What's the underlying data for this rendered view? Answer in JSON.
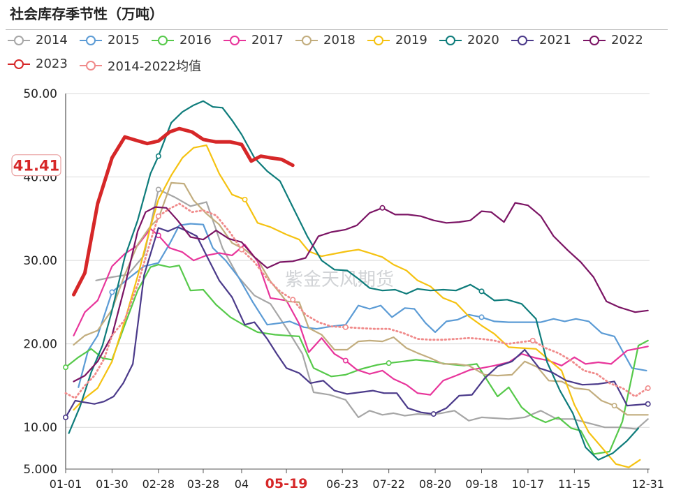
{
  "title": "社会库存季节性（万吨）",
  "watermark": "紫金天风期货",
  "chart_data": {
    "type": "line",
    "title": "社会库存季节性（万吨）",
    "xlabel": "",
    "ylabel": "",
    "x_domain": [
      0,
      365
    ],
    "ylim": [
      5,
      50
    ],
    "y_ticks": [
      {
        "value": 5,
        "label": "5.000"
      },
      {
        "value": 10,
        "label": "10.00"
      },
      {
        "value": 20,
        "label": "20.00"
      },
      {
        "value": 30,
        "label": "30.00"
      },
      {
        "value": 40,
        "label": "40.00"
      },
      {
        "value": 50,
        "label": "50.00"
      }
    ],
    "x_ticks": [
      {
        "day": 0,
        "label": "01-01"
      },
      {
        "day": 29,
        "label": "01-30"
      },
      {
        "day": 58,
        "label": "02-28"
      },
      {
        "day": 86,
        "label": "03-28"
      },
      {
        "day": 110,
        "label": "04"
      },
      {
        "day": 138,
        "label": "05-19",
        "highlight": true
      },
      {
        "day": 173,
        "label": "06-23"
      },
      {
        "day": 202,
        "label": "07-22"
      },
      {
        "day": 231,
        "label": "08-20"
      },
      {
        "day": 260,
        "label": "09-18"
      },
      {
        "day": 289,
        "label": "10-17"
      },
      {
        "day": 318,
        "label": "11-15"
      },
      {
        "day": 364,
        "label": "12-31"
      }
    ],
    "current_value_label": "41.41",
    "current_value": 41.41,
    "series": [
      {
        "name": "2014",
        "color": "#a6a6a6",
        "style": "solid",
        "width": 2.2,
        "x": [
          19,
          29,
          39,
          49,
          58,
          68,
          78,
          88,
          98,
          108,
          118,
          128,
          138,
          148,
          155,
          165,
          175,
          183,
          190,
          198,
          205,
          212,
          220,
          228,
          235,
          243,
          252,
          260,
          269,
          277,
          287,
          297,
          307,
          317,
          327,
          337,
          347,
          357,
          364
        ],
        "y": [
          27.6,
          28.0,
          28.3,
          30.6,
          38.5,
          37.6,
          36.5,
          37.0,
          31.5,
          28.0,
          25.8,
          24.8,
          21.9,
          18.8,
          14.2,
          13.9,
          13.3,
          11.2,
          12.0,
          11.5,
          11.7,
          11.4,
          11.6,
          11.5,
          11.7,
          12.0,
          10.8,
          11.2,
          11.1,
          11.0,
          11.2,
          12.0,
          11.0,
          11.0,
          10.5,
          10.0,
          10.0,
          9.8,
          11.0
        ],
        "markers": [
          58
        ]
      },
      {
        "name": "2015",
        "color": "#5b9bd5",
        "style": "solid",
        "width": 2.2,
        "x": [
          8,
          14,
          20,
          29,
          39,
          49,
          58,
          65,
          71,
          78,
          86,
          92,
          100,
          108,
          117,
          126,
          134,
          140,
          149,
          157,
          166,
          175,
          183,
          190,
          197,
          204,
          212,
          218,
          225,
          231,
          238,
          245,
          252,
          260,
          268,
          277,
          287,
          297,
          305,
          312,
          319,
          327,
          335,
          343,
          354,
          363
        ],
        "y": [
          14.8,
          19.2,
          21.0,
          26.2,
          27.8,
          29.3,
          29.7,
          32.0,
          34.2,
          34.4,
          34.3,
          31.5,
          30.0,
          28.0,
          25.0,
          22.3,
          22.5,
          22.7,
          22.0,
          21.8,
          22.1,
          22.3,
          24.6,
          24.2,
          24.6,
          23.2,
          24.3,
          24.2,
          22.5,
          21.4,
          22.7,
          22.9,
          23.5,
          23.2,
          22.7,
          22.6,
          22.6,
          22.6,
          23.0,
          22.7,
          23.0,
          22.7,
          21.3,
          20.9,
          17.1,
          16.8
        ],
        "markers": [
          29,
          260
        ]
      },
      {
        "name": "2016",
        "color": "#56c94a",
        "style": "solid",
        "width": 2.2,
        "x": [
          0,
          8,
          16,
          23,
          29,
          37,
          45,
          53,
          58,
          65,
          71,
          78,
          86,
          94,
          103,
          112,
          120,
          131,
          138,
          146,
          155,
          166,
          175,
          185,
          195,
          202,
          211,
          219,
          229,
          238,
          249,
          257,
          264,
          270,
          277,
          285,
          292,
          300,
          308,
          316,
          322,
          330,
          340,
          348,
          358,
          364
        ],
        "y": [
          17.2,
          18.4,
          19.4,
          18.3,
          18.1,
          22.3,
          26.4,
          29.2,
          29.5,
          29.2,
          29.4,
          26.4,
          26.5,
          24.7,
          23.2,
          22.2,
          21.4,
          21.1,
          21.0,
          20.9,
          17.1,
          16.1,
          16.3,
          17.0,
          17.5,
          17.7,
          17.9,
          18.1,
          17.9,
          17.6,
          17.4,
          17.6,
          15.5,
          13.7,
          14.8,
          12.4,
          11.3,
          10.6,
          11.2,
          9.9,
          9.6,
          6.8,
          7.1,
          10.7,
          19.8,
          20.4
        ],
        "markers": [
          0,
          202
        ]
      },
      {
        "name": "2017",
        "color": "#e8359b",
        "style": "solid",
        "width": 2.2,
        "x": [
          5,
          12,
          20,
          29,
          37,
          45,
          53,
          58,
          65,
          73,
          80,
          88,
          96,
          104,
          112,
          120,
          128,
          138,
          146,
          152,
          160,
          168,
          175,
          182,
          190,
          198,
          205,
          213,
          220,
          228,
          236,
          244,
          253,
          260,
          268,
          277,
          285,
          294,
          302,
          310,
          318,
          325,
          333,
          341,
          351,
          364
        ],
        "y": [
          21.0,
          23.8,
          25.2,
          29.3,
          30.8,
          31.8,
          33.8,
          33.0,
          31.5,
          31.0,
          30.0,
          30.6,
          30.9,
          30.6,
          31.9,
          29.9,
          25.5,
          25.2,
          22.4,
          19.0,
          20.7,
          18.8,
          18.0,
          16.9,
          16.4,
          16.8,
          15.8,
          15.1,
          14.1,
          13.9,
          15.6,
          16.2,
          16.9,
          17.1,
          17.4,
          17.8,
          18.8,
          18.3,
          18.0,
          17.4,
          18.4,
          17.6,
          17.8,
          17.6,
          19.2,
          19.7
        ],
        "markers": [
          58,
          175
        ]
      },
      {
        "name": "2018",
        "color": "#c2ad7e",
        "style": "solid",
        "width": 2.2,
        "x": [
          5,
          12,
          20,
          29,
          37,
          45,
          53,
          58,
          66,
          74,
          80,
          88,
          96,
          104,
          112,
          120,
          128,
          138,
          146,
          152,
          160,
          168,
          176,
          183,
          190,
          198,
          205,
          213,
          220,
          228,
          236,
          244,
          252,
          262,
          270,
          279,
          287,
          295,
          302,
          310,
          318,
          327,
          335,
          343,
          351,
          364
        ],
        "y": [
          19.9,
          21.0,
          21.6,
          24.1,
          28.3,
          31.9,
          34.1,
          35.0,
          39.3,
          39.2,
          37.2,
          35.6,
          34.3,
          32.1,
          31.3,
          30.1,
          27.5,
          25.1,
          25.0,
          21.9,
          21.1,
          19.3,
          19.3,
          20.3,
          20.4,
          20.3,
          20.8,
          19.5,
          18.9,
          18.3,
          17.6,
          17.6,
          17.4,
          16.3,
          16.2,
          16.3,
          17.9,
          17.2,
          15.6,
          15.5,
          14.7,
          14.5,
          13.2,
          12.6,
          11.5,
          11.5
        ],
        "markers": [
          343
        ]
      },
      {
        "name": "2019",
        "color": "#f5c211",
        "style": "solid",
        "width": 2.2,
        "x": [
          5,
          12,
          20,
          29,
          37,
          45,
          53,
          58,
          66,
          73,
          80,
          88,
          96,
          104,
          112,
          120,
          128,
          138,
          146,
          152,
          160,
          168,
          176,
          183,
          190,
          198,
          205,
          213,
          220,
          228,
          236,
          244,
          252,
          260,
          268,
          277,
          285,
          294,
          302,
          310,
          318,
          327,
          336,
          344,
          352,
          359
        ],
        "y": [
          12.1,
          13.5,
          14.7,
          17.9,
          22.8,
          28.1,
          34.0,
          37.3,
          40.2,
          42.3,
          43.5,
          43.8,
          40.4,
          37.9,
          37.3,
          34.5,
          34.0,
          33.1,
          32.5,
          31.1,
          30.5,
          30.8,
          31.1,
          31.3,
          30.9,
          30.4,
          29.5,
          28.8,
          27.6,
          26.9,
          25.5,
          24.9,
          23.3,
          22.2,
          21.2,
          19.6,
          19.5,
          19.4,
          18.1,
          16.8,
          12.7,
          9.4,
          7.4,
          5.6,
          5.2,
          6.1
        ],
        "markers": [
          114
        ]
      },
      {
        "name": "2020",
        "color": "#0e7c7b",
        "style": "solid",
        "width": 2.2,
        "x": [
          2,
          9,
          16,
          23,
          29,
          37,
          45,
          53,
          58,
          66,
          73,
          80,
          86,
          92,
          98,
          104,
          110,
          118,
          126,
          134,
          142,
          151,
          160,
          168,
          176,
          183,
          190,
          198,
          206,
          213,
          220,
          228,
          236,
          244,
          253,
          260,
          268,
          276,
          285,
          294,
          301,
          309,
          317,
          325,
          333,
          342,
          351,
          358
        ],
        "y": [
          9.3,
          12.5,
          16.6,
          19.8,
          24.0,
          30.4,
          34.8,
          40.4,
          42.5,
          46.5,
          47.8,
          48.6,
          49.1,
          48.4,
          48.3,
          46.8,
          45.1,
          42.3,
          40.7,
          39.5,
          36.4,
          32.9,
          30.0,
          28.9,
          28.8,
          27.8,
          26.7,
          26.4,
          26.5,
          26.0,
          26.6,
          26.4,
          26.5,
          26.4,
          27.1,
          26.3,
          25.2,
          25.3,
          24.8,
          23.0,
          17.8,
          14.4,
          11.7,
          7.6,
          6.1,
          6.9,
          8.4,
          9.9
        ],
        "markers": [
          58,
          260
        ]
      },
      {
        "name": "2021",
        "color": "#4b3a8a",
        "style": "solid",
        "width": 2.2,
        "x": [
          0,
          6,
          12,
          18,
          24,
          30,
          36,
          42,
          49,
          58,
          64,
          70,
          76,
          82,
          88,
          96,
          104,
          112,
          118,
          126,
          132,
          138,
          146,
          153,
          161,
          168,
          176,
          184,
          192,
          199,
          207,
          214,
          222,
          230,
          238,
          246,
          254,
          262,
          270,
          279,
          287,
          296,
          304,
          313,
          323,
          333,
          343,
          351,
          364
        ],
        "y": [
          11.2,
          13.2,
          13.0,
          12.8,
          13.1,
          13.7,
          15.3,
          17.6,
          28.2,
          33.9,
          33.5,
          34.0,
          33.5,
          32.9,
          30.6,
          27.6,
          25.6,
          22.3,
          22.6,
          20.6,
          18.8,
          17.1,
          16.5,
          15.3,
          15.6,
          14.4,
          14.0,
          14.2,
          14.4,
          14.1,
          14.1,
          12.3,
          11.8,
          11.6,
          12.3,
          13.8,
          13.9,
          15.9,
          17.3,
          17.9,
          19.3,
          17.1,
          16.6,
          15.6,
          15.1,
          15.2,
          15.5,
          12.6,
          12.8
        ],
        "markers": [
          0,
          230,
          364
        ]
      },
      {
        "name": "2022",
        "color": "#7b1464",
        "style": "solid",
        "width": 2.2,
        "x": [
          5,
          12,
          20,
          29,
          37,
          45,
          50,
          56,
          63,
          70,
          78,
          86,
          94,
          102,
          110,
          118,
          126,
          134,
          142,
          150,
          158,
          166,
          175,
          182,
          190,
          198,
          206,
          214,
          222,
          230,
          238,
          246,
          253,
          260,
          266,
          274,
          281,
          289,
          297,
          305,
          314,
          322,
          330,
          338,
          346,
          356,
          364
        ],
        "y": [
          15.5,
          16.2,
          17.9,
          21.0,
          26.9,
          33.5,
          35.8,
          36.4,
          36.3,
          34.8,
          32.8,
          32.5,
          33.6,
          32.6,
          32.2,
          30.4,
          29.1,
          29.8,
          29.9,
          30.3,
          32.9,
          33.4,
          33.7,
          34.2,
          35.7,
          36.3,
          35.5,
          35.5,
          35.3,
          34.8,
          34.5,
          34.6,
          34.8,
          35.9,
          35.8,
          34.6,
          36.9,
          36.6,
          35.3,
          32.9,
          31.2,
          29.8,
          28.0,
          25.1,
          24.4,
          23.8,
          24.0
        ],
        "markers": [
          202
        ]
      },
      {
        "name": "2023",
        "color": "#d62728",
        "style": "solid",
        "width": 5.0,
        "x": [
          5,
          12,
          20,
          29,
          37,
          44,
          51,
          58,
          65,
          71,
          79,
          86,
          94,
          103,
          110,
          116,
          122,
          128,
          135,
          142
        ],
        "y": [
          25.9,
          28.5,
          36.8,
          42.3,
          44.8,
          44.4,
          44.0,
          44.3,
          45.4,
          45.8,
          45.4,
          44.5,
          44.2,
          44.2,
          43.9,
          41.9,
          42.5,
          42.3,
          42.1,
          41.4
        ],
        "markers": []
      },
      {
        "name": "2014-2022均值",
        "color": "#f08a8a",
        "style": "dotted",
        "width": 2.8,
        "x": [
          0,
          6,
          12,
          18,
          24,
          29,
          37,
          45,
          53,
          58,
          65,
          71,
          79,
          86,
          94,
          103,
          110,
          118,
          126,
          134,
          142,
          150,
          158,
          166,
          175,
          184,
          193,
          202,
          211,
          220,
          228,
          236,
          244,
          252,
          260,
          268,
          276,
          284,
          292,
          300,
          308,
          316,
          324,
          332,
          340,
          348,
          356,
          364
        ],
        "y": [
          14.1,
          13.5,
          15.0,
          16.2,
          18.2,
          21.0,
          22.9,
          27.1,
          32.3,
          35.3,
          36.2,
          36.8,
          35.8,
          36.0,
          35.4,
          33.3,
          31.3,
          29.8,
          27.8,
          26.3,
          25.3,
          23.5,
          22.6,
          22.1,
          22.0,
          21.9,
          21.8,
          21.8,
          21.3,
          20.6,
          20.5,
          20.5,
          20.6,
          20.7,
          20.6,
          20.4,
          20.0,
          20.2,
          20.4,
          19.5,
          18.9,
          18.0,
          16.8,
          16.4,
          15.3,
          14.7,
          13.7,
          14.7
        ],
        "markers": [
          58,
          114,
          142,
          175,
          289,
          364
        ]
      }
    ]
  }
}
